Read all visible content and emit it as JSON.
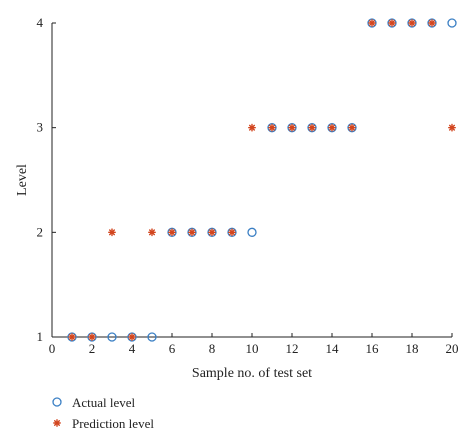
{
  "chart_data": {
    "type": "scatter",
    "xlabel": "Sample no. of test set",
    "ylabel": "Level",
    "xlim": [
      0,
      20
    ],
    "ylim": [
      1,
      4
    ],
    "xticks": [
      0,
      2,
      4,
      6,
      8,
      10,
      12,
      14,
      16,
      18,
      20
    ],
    "yticks": [
      1,
      2,
      3,
      4
    ],
    "xtick_labels": [
      "0",
      "2",
      "4",
      "6",
      "8",
      "10",
      "12",
      "14",
      "16",
      "18",
      "20"
    ],
    "ytick_labels": [
      "1",
      "2",
      "3",
      "4"
    ],
    "grid": false,
    "legend_position": "bottom-left",
    "series": [
      {
        "name": "Actual level",
        "marker": "circle",
        "color": "#3a7fc4",
        "x": [
          1,
          2,
          3,
          4,
          5,
          6,
          7,
          8,
          9,
          10,
          11,
          12,
          13,
          14,
          15,
          16,
          17,
          18,
          19,
          20
        ],
        "y": [
          1,
          1,
          1,
          1,
          1,
          2,
          2,
          2,
          2,
          2,
          3,
          3,
          3,
          3,
          3,
          4,
          4,
          4,
          4,
          4
        ]
      },
      {
        "name": "Prediction level",
        "marker": "star",
        "color": "#d2451e",
        "x": [
          1,
          2,
          3,
          4,
          5,
          6,
          7,
          8,
          9,
          10,
          11,
          12,
          13,
          14,
          15,
          16,
          17,
          18,
          19,
          20
        ],
        "y": [
          1,
          1,
          2,
          1,
          2,
          2,
          2,
          2,
          2,
          3,
          3,
          3,
          3,
          3,
          3,
          4,
          4,
          4,
          4,
          3
        ]
      }
    ]
  }
}
